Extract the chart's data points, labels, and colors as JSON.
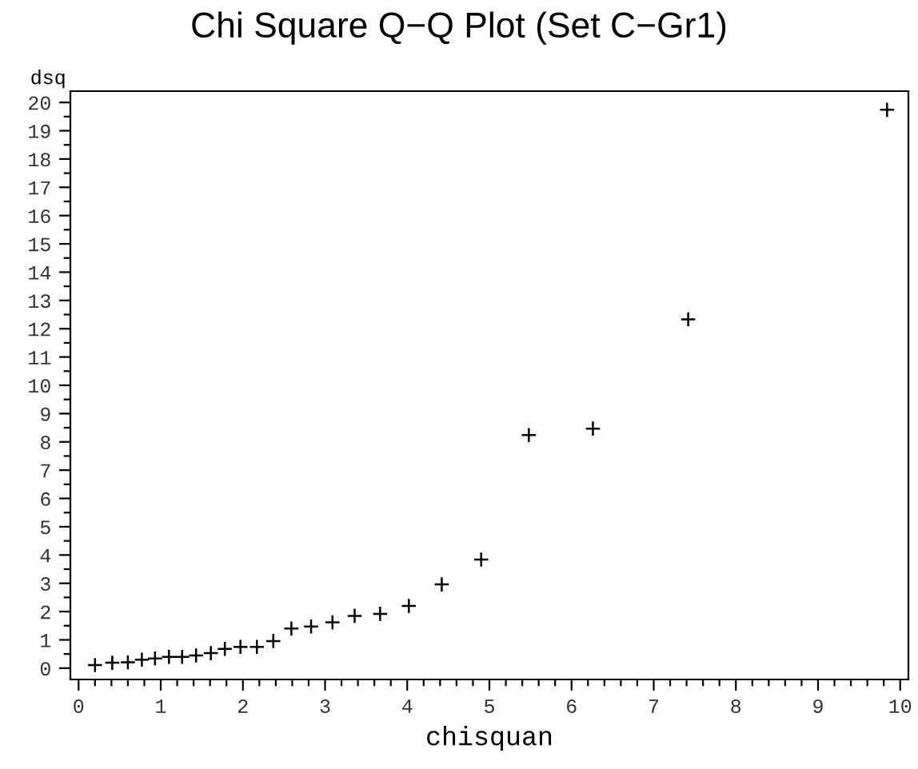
{
  "chart_data": {
    "type": "scatter",
    "title": "Chi Square Q−Q Plot (Set C−Gr1)",
    "xlabel": "chisquan",
    "ylabel": "dsq",
    "x": [
      0.2,
      0.41,
      0.6,
      0.77,
      0.93,
      1.1,
      1.26,
      1.43,
      1.61,
      1.78,
      1.97,
      2.17,
      2.37,
      2.59,
      2.83,
      3.09,
      3.36,
      3.67,
      4.02,
      4.42,
      4.9,
      5.48,
      6.26,
      7.42,
      9.84
    ],
    "series": [
      {
        "color": "#000000",
        "values": [
          0.11,
          0.19,
          0.21,
          0.3,
          0.34,
          0.4,
          0.4,
          0.45,
          0.53,
          0.68,
          0.75,
          0.75,
          0.96,
          1.4,
          1.47,
          1.62,
          1.85,
          1.92,
          2.2,
          2.96,
          3.84,
          8.24,
          8.47,
          12.33,
          19.74
        ]
      }
    ],
    "xlim": [
      -0.1,
      10.1
    ],
    "ylim": [
      -0.4,
      20.4
    ],
    "xticks": [
      0,
      1,
      2,
      3,
      4,
      5,
      6,
      7,
      8,
      9,
      10
    ],
    "yticks": [
      0,
      1,
      2,
      3,
      4,
      5,
      6,
      7,
      8,
      9,
      10,
      11,
      12,
      13,
      14,
      15,
      16,
      17,
      18,
      19,
      20
    ],
    "marker": "cross",
    "grid": false,
    "legend": false
  }
}
